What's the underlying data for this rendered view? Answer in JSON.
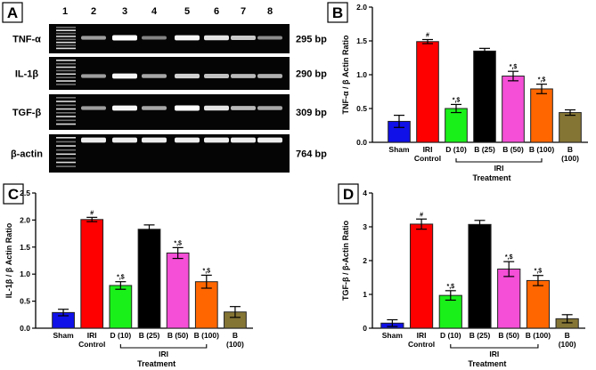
{
  "panel_a": {
    "label": "A",
    "lanes": [
      "1",
      "2",
      "3",
      "4",
      "5",
      "6",
      "7",
      "8"
    ],
    "rows": [
      {
        "name": "TNF-α",
        "size": "295 bp",
        "band_intensity": [
          0.45,
          1.0,
          0.3,
          0.95,
          0.85,
          0.7,
          0.35
        ]
      },
      {
        "name": "IL-1β",
        "size": "290 bp",
        "band_intensity": [
          0.45,
          0.95,
          0.5,
          0.75,
          0.65,
          0.6,
          0.55
        ]
      },
      {
        "name": "TGF-β",
        "size": "309 bp",
        "band_intensity": [
          0.45,
          0.95,
          0.5,
          1.0,
          0.85,
          0.6,
          0.5
        ]
      },
      {
        "name": "β-actin",
        "size": "764 bp",
        "band_intensity": [
          0.9,
          0.9,
          0.9,
          0.9,
          0.9,
          0.9,
          0.9
        ]
      }
    ]
  },
  "chart_data": [
    {
      "panel": "B",
      "type": "bar",
      "ylabel": "TNF-α / β Actin Ratio",
      "ylim": [
        0,
        2.0
      ],
      "yticks": [
        "0.0",
        "0.5",
        "1.0",
        "1.5",
        "2.0"
      ],
      "categories": [
        "Sham",
        "IRI\nControl",
        "D (10)",
        "B (25)",
        "B (50)",
        "B (100)",
        "B\n(100)"
      ],
      "values": [
        0.31,
        1.49,
        0.5,
        1.35,
        0.98,
        0.79,
        0.44
      ],
      "errors": [
        0.09,
        0.03,
        0.06,
        0.04,
        0.07,
        0.07,
        0.04
      ],
      "annotations": [
        "",
        "#",
        "*,$",
        "",
        "*,$",
        "*,$",
        ""
      ],
      "group_label": "IRI",
      "xlabel": "Treatment"
    },
    {
      "panel": "C",
      "type": "bar",
      "ylabel": "IL-1β / β Actin Ratio",
      "ylim": [
        0,
        2.5
      ],
      "yticks": [
        "0.0",
        "0.5",
        "1.0",
        "1.5",
        "2.0",
        "2.5"
      ],
      "categories": [
        "Sham",
        "IRI\nControl",
        "D (10)",
        "B (25)",
        "B (50)",
        "B (100)",
        "B\n(100)"
      ],
      "values": [
        0.29,
        2.01,
        0.79,
        1.83,
        1.39,
        0.86,
        0.3
      ],
      "errors": [
        0.06,
        0.04,
        0.07,
        0.08,
        0.1,
        0.12,
        0.1
      ],
      "annotations": [
        "",
        "#",
        "*,$",
        "",
        "*,$",
        "*,$",
        ""
      ],
      "group_label": "IRI",
      "xlabel": "Treatment"
    },
    {
      "panel": "D",
      "type": "bar",
      "ylabel": "TGF-β / β-Actin Ratio",
      "ylim": [
        0,
        4
      ],
      "yticks": [
        "0",
        "1",
        "2",
        "3",
        "4"
      ],
      "categories": [
        "Sham",
        "IRI\nControl",
        "D (10)",
        "B (25)",
        "B (50)",
        "B (100)",
        "B\n(100)"
      ],
      "values": [
        0.15,
        3.08,
        0.97,
        3.07,
        1.75,
        1.41,
        0.28
      ],
      "errors": [
        0.1,
        0.15,
        0.14,
        0.12,
        0.22,
        0.15,
        0.12
      ],
      "annotations": [
        "",
        "#",
        "*,$",
        "",
        "*,$",
        "*,$",
        ""
      ],
      "group_label": "IRI",
      "xlabel": "Treatment"
    }
  ],
  "colors": [
    "#1010e8",
    "#ff0000",
    "#19f019",
    "#000000",
    "#f44fd6",
    "#ff6600",
    "#857535"
  ]
}
